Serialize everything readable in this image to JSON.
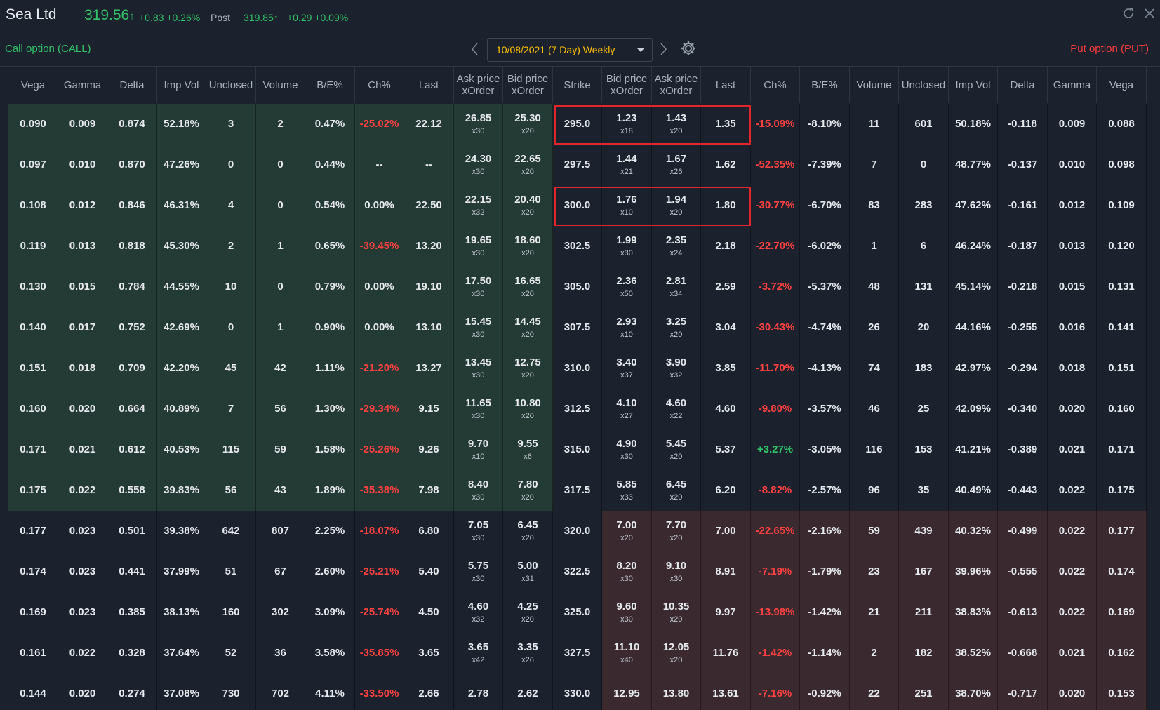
{
  "header": {
    "ticker": "Sea Ltd",
    "price": "319.56",
    "price_arrow": "↑",
    "change": "+0.83 +0.26%",
    "post_label": "Post",
    "post_price": "319.85",
    "post_change": "+0.29 +0.09%",
    "icons": [
      "refresh-icon",
      "close-icon"
    ]
  },
  "controls": {
    "call_label": "Call option  (CALL)",
    "put_label": "Put option  (PUT)",
    "expiry": "10/08/2021 (7 Day) Weekly"
  },
  "columns": [
    [
      "Vega"
    ],
    [
      "Gamma"
    ],
    [
      "Delta"
    ],
    [
      "Imp Vol"
    ],
    [
      "Unclosed"
    ],
    [
      "Volume"
    ],
    [
      "B/E%"
    ],
    [
      "Ch%"
    ],
    [
      "Last"
    ],
    [
      "Ask price",
      "xOrder"
    ],
    [
      "Bid price",
      "xOrder"
    ],
    [
      "Strike"
    ],
    [
      "Bid price",
      "xOrder"
    ],
    [
      "Ask price",
      "xOrder"
    ],
    [
      "Last"
    ],
    [
      "Ch%"
    ],
    [
      "B/E%"
    ],
    [
      "Volume"
    ],
    [
      "Unclosed"
    ],
    [
      "Imp Vol"
    ],
    [
      "Delta"
    ],
    [
      "Gamma"
    ],
    [
      "Vega"
    ]
  ],
  "colors": {
    "call_itm_bg": "#243a35",
    "put_itm_bg": "#3a2a30",
    "bg": "#1b222d",
    "up": "#33c26a",
    "down": "#ff4141"
  },
  "rows": [
    {
      "call": [
        "0.090",
        "0.009",
        "0.874",
        "52.18%",
        "3",
        "2",
        "0.47%",
        "-25.02%",
        "22.12"
      ],
      "cask": [
        "26.85",
        "x30"
      ],
      "cbid": [
        "25.30",
        "x20"
      ],
      "strike": "295.0",
      "pbid": [
        "1.23",
        "x18"
      ],
      "pask": [
        "1.43",
        "x20"
      ],
      "put": [
        "1.35",
        "-15.09%",
        "-8.10%",
        "11",
        "601",
        "50.18%",
        "-0.118",
        "0.009",
        "0.088"
      ]
    },
    {
      "call": [
        "0.097",
        "0.010",
        "0.870",
        "47.26%",
        "0",
        "0",
        "0.44%",
        "--",
        "--"
      ],
      "cask": [
        "24.30",
        "x30"
      ],
      "cbid": [
        "22.65",
        "x20"
      ],
      "strike": "297.5",
      "pbid": [
        "1.44",
        "x21"
      ],
      "pask": [
        "1.67",
        "x26"
      ],
      "put": [
        "1.62",
        "-52.35%",
        "-7.39%",
        "7",
        "0",
        "48.77%",
        "-0.137",
        "0.010",
        "0.098"
      ]
    },
    {
      "call": [
        "0.108",
        "0.012",
        "0.846",
        "46.31%",
        "4",
        "0",
        "0.54%",
        "0.00%",
        "22.50"
      ],
      "cask": [
        "22.15",
        "x32"
      ],
      "cbid": [
        "20.40",
        "x20"
      ],
      "strike": "300.0",
      "pbid": [
        "1.76",
        "x10"
      ],
      "pask": [
        "1.94",
        "x20"
      ],
      "put": [
        "1.80",
        "-30.77%",
        "-6.70%",
        "83",
        "283",
        "47.62%",
        "-0.161",
        "0.012",
        "0.109"
      ]
    },
    {
      "call": [
        "0.119",
        "0.013",
        "0.818",
        "45.30%",
        "2",
        "1",
        "0.65%",
        "-39.45%",
        "13.20"
      ],
      "cask": [
        "19.65",
        "x30"
      ],
      "cbid": [
        "18.60",
        "x20"
      ],
      "strike": "302.5",
      "pbid": [
        "1.99",
        "x30"
      ],
      "pask": [
        "2.35",
        "x24"
      ],
      "put": [
        "2.18",
        "-22.70%",
        "-6.02%",
        "1",
        "6",
        "46.24%",
        "-0.187",
        "0.013",
        "0.120"
      ]
    },
    {
      "call": [
        "0.130",
        "0.015",
        "0.784",
        "44.55%",
        "10",
        "0",
        "0.79%",
        "0.00%",
        "19.10"
      ],
      "cask": [
        "17.50",
        "x30"
      ],
      "cbid": [
        "16.65",
        "x20"
      ],
      "strike": "305.0",
      "pbid": [
        "2.36",
        "x50"
      ],
      "pask": [
        "2.81",
        "x34"
      ],
      "put": [
        "2.59",
        "-3.72%",
        "-5.37%",
        "48",
        "131",
        "45.14%",
        "-0.218",
        "0.015",
        "0.131"
      ]
    },
    {
      "call": [
        "0.140",
        "0.017",
        "0.752",
        "42.69%",
        "0",
        "1",
        "0.90%",
        "0.00%",
        "13.10"
      ],
      "cask": [
        "15.45",
        "x30"
      ],
      "cbid": [
        "14.45",
        "x20"
      ],
      "strike": "307.5",
      "pbid": [
        "2.93",
        "x10"
      ],
      "pask": [
        "3.25",
        "x20"
      ],
      "put": [
        "3.04",
        "-30.43%",
        "-4.74%",
        "26",
        "20",
        "44.16%",
        "-0.255",
        "0.016",
        "0.141"
      ]
    },
    {
      "call": [
        "0.151",
        "0.018",
        "0.709",
        "42.20%",
        "45",
        "42",
        "1.11%",
        "-21.20%",
        "13.27"
      ],
      "cask": [
        "13.45",
        "x30"
      ],
      "cbid": [
        "12.75",
        "x20"
      ],
      "strike": "310.0",
      "pbid": [
        "3.40",
        "x37"
      ],
      "pask": [
        "3.90",
        "x32"
      ],
      "put": [
        "3.85",
        "-11.70%",
        "-4.13%",
        "74",
        "183",
        "42.97%",
        "-0.294",
        "0.018",
        "0.151"
      ]
    },
    {
      "call": [
        "0.160",
        "0.020",
        "0.664",
        "40.89%",
        "7",
        "56",
        "1.30%",
        "-29.34%",
        "9.15"
      ],
      "cask": [
        "11.65",
        "x30"
      ],
      "cbid": [
        "10.80",
        "x20"
      ],
      "strike": "312.5",
      "pbid": [
        "4.10",
        "x27"
      ],
      "pask": [
        "4.60",
        "x22"
      ],
      "put": [
        "4.60",
        "-9.80%",
        "-3.57%",
        "46",
        "25",
        "42.09%",
        "-0.340",
        "0.020",
        "0.160"
      ]
    },
    {
      "call": [
        "0.171",
        "0.021",
        "0.612",
        "40.53%",
        "115",
        "59",
        "1.58%",
        "-25.26%",
        "9.26"
      ],
      "cask": [
        "9.70",
        "x10"
      ],
      "cbid": [
        "9.55",
        "x6"
      ],
      "strike": "315.0",
      "pbid": [
        "4.90",
        "x30"
      ],
      "pask": [
        "5.45",
        "x20"
      ],
      "put": [
        "5.37",
        "+3.27%",
        "-3.05%",
        "116",
        "153",
        "41.21%",
        "-0.389",
        "0.021",
        "0.171"
      ]
    },
    {
      "call": [
        "0.175",
        "0.022",
        "0.558",
        "39.83%",
        "56",
        "43",
        "1.89%",
        "-35.38%",
        "7.98"
      ],
      "cask": [
        "8.40",
        "x30"
      ],
      "cbid": [
        "7.80",
        "x20"
      ],
      "strike": "317.5",
      "pbid": [
        "5.85",
        "x33"
      ],
      "pask": [
        "6.45",
        "x20"
      ],
      "put": [
        "6.20",
        "-8.82%",
        "-2.57%",
        "96",
        "35",
        "40.49%",
        "-0.443",
        "0.022",
        "0.175"
      ]
    },
    {
      "call": [
        "0.177",
        "0.023",
        "0.501",
        "39.38%",
        "642",
        "807",
        "2.25%",
        "-18.07%",
        "6.80"
      ],
      "cask": [
        "7.05",
        "x30"
      ],
      "cbid": [
        "6.45",
        "x20"
      ],
      "strike": "320.0",
      "pbid": [
        "7.00",
        "x20"
      ],
      "pask": [
        "7.70",
        "x20"
      ],
      "put": [
        "7.00",
        "-22.65%",
        "-2.16%",
        "59",
        "439",
        "40.32%",
        "-0.499",
        "0.022",
        "0.177"
      ]
    },
    {
      "call": [
        "0.174",
        "0.023",
        "0.441",
        "37.99%",
        "51",
        "67",
        "2.60%",
        "-25.21%",
        "5.40"
      ],
      "cask": [
        "5.75",
        "x30"
      ],
      "cbid": [
        "5.00",
        "x31"
      ],
      "strike": "322.5",
      "pbid": [
        "8.20",
        "x30"
      ],
      "pask": [
        "9.10",
        "x30"
      ],
      "put": [
        "8.91",
        "-7.19%",
        "-1.79%",
        "23",
        "167",
        "39.96%",
        "-0.555",
        "0.022",
        "0.174"
      ]
    },
    {
      "call": [
        "0.169",
        "0.023",
        "0.385",
        "38.13%",
        "160",
        "302",
        "3.09%",
        "-25.74%",
        "4.50"
      ],
      "cask": [
        "4.60",
        "x32"
      ],
      "cbid": [
        "4.25",
        "x20"
      ],
      "strike": "325.0",
      "pbid": [
        "9.60",
        "x30"
      ],
      "pask": [
        "10.35",
        "x20"
      ],
      "put": [
        "9.97",
        "-13.98%",
        "-1.42%",
        "21",
        "211",
        "38.83%",
        "-0.613",
        "0.022",
        "0.169"
      ]
    },
    {
      "call": [
        "0.161",
        "0.022",
        "0.328",
        "37.64%",
        "52",
        "36",
        "3.58%",
        "-35.85%",
        "3.65"
      ],
      "cask": [
        "3.65",
        "x42"
      ],
      "cbid": [
        "3.35",
        "x26"
      ],
      "strike": "327.5",
      "pbid": [
        "11.10",
        "x40"
      ],
      "pask": [
        "12.05",
        "x20"
      ],
      "put": [
        "11.76",
        "-1.42%",
        "-1.14%",
        "2",
        "182",
        "38.52%",
        "-0.668",
        "0.021",
        "0.162"
      ]
    },
    {
      "call": [
        "0.144",
        "0.020",
        "0.274",
        "37.08%",
        "730",
        "702",
        "4.11%",
        "-33.50%",
        "2.66"
      ],
      "cask": [
        "2.78",
        ""
      ],
      "cbid": [
        "2.62",
        ""
      ],
      "strike": "330.0",
      "pbid": [
        "12.95",
        ""
      ],
      "pask": [
        "13.80",
        ""
      ],
      "put": [
        "13.61",
        "-7.16%",
        "-0.92%",
        "22",
        "251",
        "38.70%",
        "-0.717",
        "0.020",
        "0.153"
      ]
    }
  ]
}
